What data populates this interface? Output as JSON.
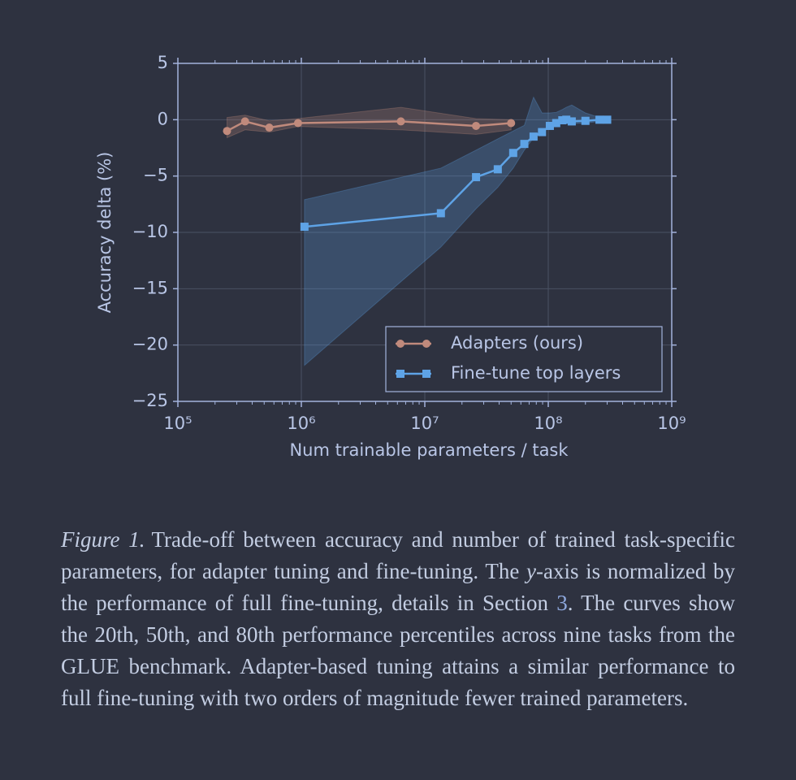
{
  "chart_data": {
    "type": "line",
    "xlabel": "Num trainable parameters / task",
    "ylabel": "Accuracy delta (%)",
    "xscale": "log",
    "xlim": [
      100000,
      1000000000
    ],
    "xticks": [
      {
        "value": 100000,
        "label": "10⁵"
      },
      {
        "value": 1000000,
        "label": "10⁶"
      },
      {
        "value": 10000000,
        "label": "10⁷"
      },
      {
        "value": 100000000,
        "label": "10⁸"
      },
      {
        "value": 1000000000,
        "label": "10⁹"
      }
    ],
    "ylim": [
      -25,
      5
    ],
    "yticks": [
      5,
      0,
      {
        "value": -5,
        "label": "−5"
      },
      {
        "value": -10,
        "label": "−10"
      },
      {
        "value": -15,
        "label": "−15"
      },
      {
        "value": -20,
        "label": "−20"
      },
      {
        "value": -25,
        "label": "−25"
      }
    ],
    "grid": true,
    "minor_ticks": true,
    "legend": "lower right",
    "series": [
      {
        "name": "Adapters (ours)",
        "color": "#c08a7c",
        "marker": "circle",
        "x": [
          250000,
          350000,
          550000,
          940000,
          6400000,
          26000000,
          50000000
        ],
        "values": [
          -1.0,
          -0.15,
          -0.7,
          -0.3,
          -0.15,
          -0.55,
          -0.3
        ],
        "upper": [
          0.2,
          0.4,
          -0.1,
          0.1,
          1.1,
          0.1,
          0.0
        ],
        "lower": [
          -1.6,
          -0.9,
          -1.1,
          -0.6,
          -0.9,
          -1.3,
          -0.9
        ]
      },
      {
        "name": "Fine-tune top layers",
        "color": "#5ea3e6",
        "marker": "square",
        "x": [
          1060000,
          13500000,
          26000000,
          39000000,
          52000000,
          64000000,
          76000000,
          89000000,
          103000000,
          116000000,
          130000000,
          140000000,
          155000000,
          200000000,
          260000000,
          300000000
        ],
        "values": [
          -9.5,
          -8.3,
          -5.1,
          -4.4,
          -2.95,
          -2.15,
          -1.5,
          -1.1,
          -0.55,
          -0.3,
          -0.05,
          0.0,
          -0.15,
          -0.1,
          0.0,
          0.0
        ],
        "upper": [
          -7.1,
          -4.3,
          -2.7,
          -1.7,
          -1.0,
          -0.5,
          2.0,
          0.6,
          0.6,
          0.65,
          0.9,
          1.1,
          1.3,
          0.6,
          0.2,
          0.0
        ],
        "lower": [
          -21.8,
          -11.3,
          -7.9,
          -6.0,
          -4.3,
          -2.7,
          -1.6,
          -1.0,
          -0.7,
          -0.5,
          -0.3,
          -0.3,
          -0.35,
          -0.3,
          -0.15,
          -0.1
        ]
      }
    ]
  },
  "caption": {
    "label": "Figure 1.",
    "parts": [
      "Trade-off between accuracy and number of trained task-specific parameters, for adapter tuning and fine-tuning. The ",
      "y",
      "-axis is normalized by the performance of full fine-tuning, details in Section ",
      "3",
      ". The curves show the 20th, 50th, and 80th performance percentiles across nine tasks from the GLUE benchmark. Adapter-based tuning attains a similar performance to full fine-tuning with two orders of magnitude fewer trained parameters."
    ]
  }
}
